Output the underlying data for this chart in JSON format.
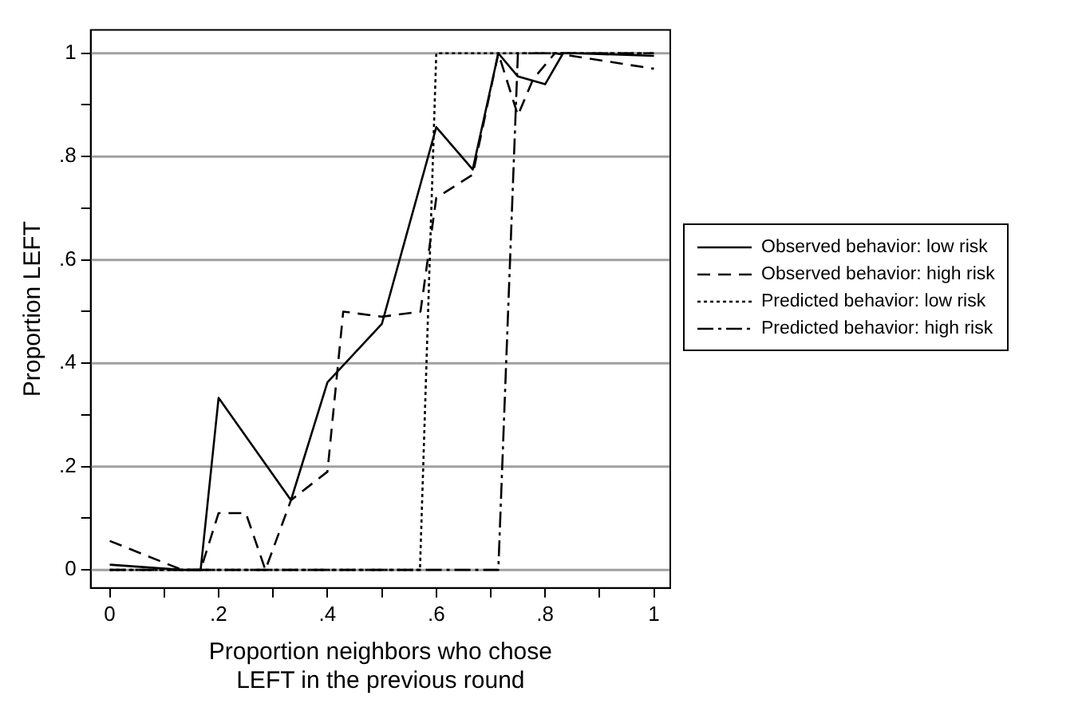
{
  "chart_data": {
    "type": "line",
    "xlabel": "Proportion neighbors who chose LEFT in the previous round",
    "ylabel": "Proportion LEFT",
    "xlim": [
      -0.035,
      1.03
    ],
    "ylim": [
      -0.035,
      1.045
    ],
    "xticks": [
      0,
      {
        "value": 0.1,
        "label": null
      },
      {
        "value": 0.2,
        "label": ".2"
      },
      {
        "value": 0.3,
        "label": null
      },
      {
        "value": 0.4,
        "label": ".4"
      },
      {
        "value": 0.5,
        "label": null
      },
      {
        "value": 0.6,
        "label": ".6"
      },
      {
        "value": 0.7,
        "label": null
      },
      {
        "value": 0.8,
        "label": ".8"
      },
      {
        "value": 0.9,
        "label": null
      },
      1
    ],
    "yticks": [
      0,
      {
        "value": 0.1,
        "label": null
      },
      {
        "value": 0.2,
        "label": ".2"
      },
      {
        "value": 0.3,
        "label": null
      },
      {
        "value": 0.4,
        "label": ".4"
      },
      {
        "value": 0.5,
        "label": null
      },
      {
        "value": 0.6,
        "label": ".6"
      },
      {
        "value": 0.7,
        "label": null
      },
      {
        "value": 0.8,
        "label": ".8"
      },
      {
        "value": 0.9,
        "label": null
      },
      1
    ],
    "grid": "y",
    "legend": "right",
    "marker": "none",
    "series": [
      {
        "name": "Observed behavior: low risk",
        "color": "#000000",
        "line_style": "solid",
        "x": [
          0,
          0.133,
          0.167,
          0.2,
          0.333,
          0.4,
          0.5,
          0.6,
          0.667,
          0.714,
          0.75,
          0.8,
          0.833,
          0.857,
          1
        ],
        "values": [
          0.01,
          0,
          0,
          0.333,
          0.135,
          0.363,
          0.476,
          0.857,
          0.775,
          1,
          0.955,
          0.94,
          1,
          1,
          0.995
        ]
      },
      {
        "name": "Observed behavior: high risk",
        "color": "#000000",
        "line_style": "dashed",
        "x": [
          0,
          0.133,
          0.167,
          0.2,
          0.25,
          0.286,
          0.333,
          0.4,
          0.429,
          0.5,
          0.571,
          0.6,
          0.667,
          0.714,
          0.75,
          0.778,
          0.818,
          1
        ],
        "values": [
          0.056,
          0,
          0,
          0.11,
          0.11,
          0,
          0.135,
          0.19,
          0.5,
          0.49,
          0.5,
          0.72,
          0.765,
          1,
          0.88,
          0.95,
          1,
          0.97
        ]
      },
      {
        "name": "Predicted behavior: low risk",
        "color": "#000000",
        "line_style": "dotted",
        "x": [
          0,
          0.57,
          0.6,
          1
        ],
        "values": [
          0,
          0,
          1,
          1
        ]
      },
      {
        "name": "Predicted behavior: high risk",
        "color": "#000000",
        "line_style": "dashdot",
        "x": [
          0,
          0.714,
          0.75,
          1
        ],
        "values": [
          0,
          0,
          1,
          1
        ]
      }
    ]
  }
}
